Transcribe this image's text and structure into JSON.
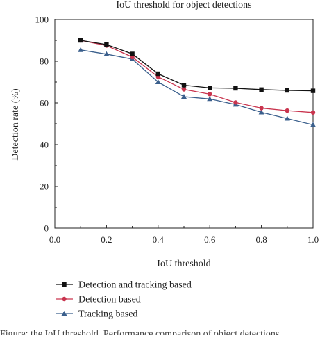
{
  "chart_data": {
    "type": "line",
    "title": "IoU threshold for object detections",
    "xlabel": "IoU threshold",
    "ylabel": "Detection rate (%)",
    "xlim": [
      0.0,
      1.0
    ],
    "ylim": [
      0,
      100
    ],
    "xticks": [
      "0.0",
      "0.2",
      "0.4",
      "0.6",
      "0.8",
      "1.0"
    ],
    "yticks": [
      "0",
      "20",
      "40",
      "60",
      "80",
      "100"
    ],
    "grid": false,
    "legend_position": "bottom",
    "x": [
      0.1,
      0.2,
      0.3,
      0.4,
      0.5,
      0.6,
      0.7,
      0.8,
      0.9,
      1.0
    ],
    "series": [
      {
        "name": "Detection and tracking based",
        "color": "#111111",
        "marker": "square",
        "values": [
          90,
          88,
          83.5,
          74,
          68.5,
          67.2,
          67,
          66.4,
          66,
          65.8
        ]
      },
      {
        "name": "Detection based",
        "color": "#c9344e",
        "marker": "circle",
        "values": [
          90,
          87.5,
          82,
          72.5,
          66.5,
          64.2,
          60.2,
          57.5,
          56.3,
          55.4
        ]
      },
      {
        "name": "Tracking based",
        "color": "#3a5f8c",
        "marker": "triangle",
        "values": [
          85.4,
          83.4,
          81,
          70,
          63,
          61.9,
          59.2,
          55.5,
          52.5,
          49.5
        ]
      }
    ]
  },
  "caption": "Figure: the IoU threshold. Performance comparison of object detections"
}
